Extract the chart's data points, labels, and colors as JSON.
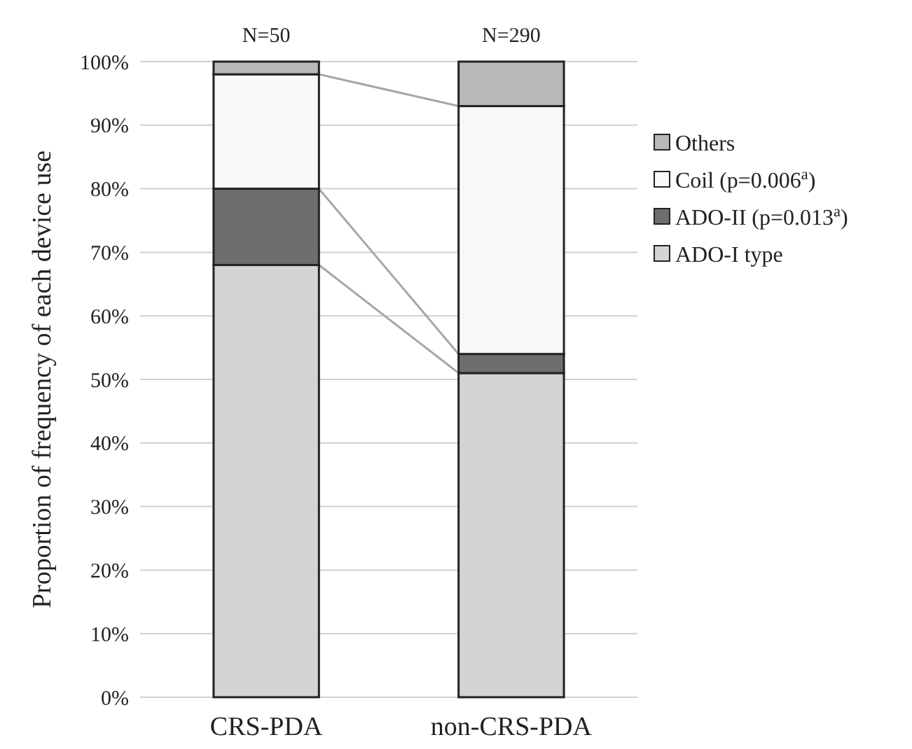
{
  "chart_data": {
    "type": "bar",
    "stacked": true,
    "ylabel": "Proportion of frequency of each device use",
    "categories": [
      "CRS-PDA",
      "non-CRS-PDA"
    ],
    "series": [
      {
        "name": "ADO-I type",
        "color": "#d4d4d4",
        "values": [
          68,
          51
        ]
      },
      {
        "name": "ADO-II (p=0.013$^{a}$)",
        "color": "#6e6e6e",
        "values": [
          12,
          3
        ]
      },
      {
        "name": "Coil (p=0.006$^{a}$)",
        "color": "#f8f8f8",
        "values": [
          18,
          39
        ]
      },
      {
        "name": "Others",
        "color": "#b8b8b8",
        "values": [
          2,
          7
        ]
      }
    ],
    "ylim": [
      0,
      100
    ],
    "yticks": [
      {
        "value": 0,
        "label": "0%"
      },
      {
        "value": 10,
        "label": "10%"
      },
      {
        "value": 20,
        "label": "20%"
      },
      {
        "value": 30,
        "label": "30%"
      },
      {
        "value": 40,
        "label": "40%"
      },
      {
        "value": 50,
        "label": "50%"
      },
      {
        "value": 60,
        "label": "60%"
      },
      {
        "value": 70,
        "label": "70%"
      },
      {
        "value": 80,
        "label": "80%"
      },
      {
        "value": 90,
        "label": "90%"
      },
      {
        "value": 100,
        "label": "100%"
      }
    ],
    "annotations": [
      {
        "text": "N=50",
        "x": "CRS-PDA",
        "y": 100
      },
      {
        "text": "N=290",
        "x": "non-CRS-PDA",
        "y": 100
      }
    ],
    "grid": "y",
    "legend": "right"
  }
}
